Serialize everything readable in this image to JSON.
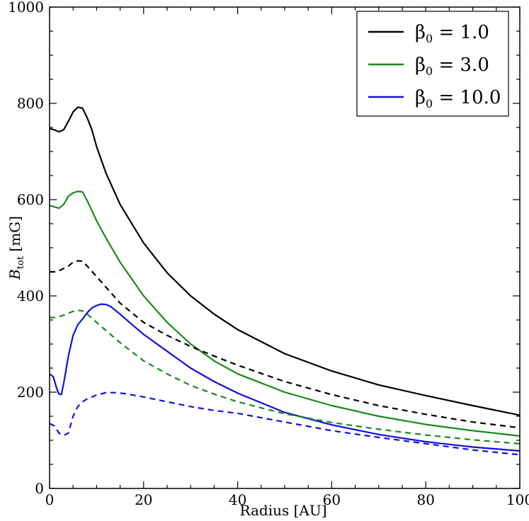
{
  "chart_data": {
    "type": "line",
    "title": "",
    "xlabel": "Radius [AU]",
    "ylabel": {
      "main": "B",
      "sub": "tot",
      "unit": " [mG]"
    },
    "xlim": [
      0,
      100
    ],
    "ylim": [
      0,
      1000
    ],
    "x_ticks": [
      0,
      20,
      40,
      60,
      80,
      100
    ],
    "y_ticks": [
      0,
      200,
      400,
      600,
      800,
      1000
    ],
    "x_tick_labels": [
      "0",
      "20",
      "40",
      "60",
      "80",
      "100"
    ],
    "y_tick_labels": [
      "0",
      "200",
      "400",
      "600",
      "800",
      "1000"
    ],
    "grid": false,
    "legend_position": "top-right",
    "legend": [
      {
        "symbol": "β",
        "sub": "0",
        "text": " = 1.0",
        "color": "#000000"
      },
      {
        "symbol": "β",
        "sub": "0",
        "text": " = 3.0",
        "color": "#1a8a1a"
      },
      {
        "symbol": "β",
        "sub": "0",
        "text": " = 10.0",
        "color": "#1010e0"
      }
    ],
    "series": [
      {
        "name": "β0 = 1.0 (solid)",
        "color": "#000000",
        "style": "solid",
        "points": [
          [
            0,
            748
          ],
          [
            1,
            745
          ],
          [
            2,
            741
          ],
          [
            3,
            745
          ],
          [
            4,
            763
          ],
          [
            5,
            782
          ],
          [
            6,
            792
          ],
          [
            7,
            790
          ],
          [
            8,
            770
          ],
          [
            9,
            745
          ],
          [
            10,
            710
          ],
          [
            12,
            655
          ],
          [
            15,
            590
          ],
          [
            20,
            510
          ],
          [
            25,
            448
          ],
          [
            30,
            400
          ],
          [
            35,
            362
          ],
          [
            40,
            330
          ],
          [
            50,
            280
          ],
          [
            60,
            244
          ],
          [
            70,
            215
          ],
          [
            80,
            193
          ],
          [
            90,
            172
          ],
          [
            100,
            152
          ]
        ]
      },
      {
        "name": "β0 = 3.0 (solid)",
        "color": "#1a8a1a",
        "style": "solid",
        "points": [
          [
            0,
            588
          ],
          [
            1,
            585
          ],
          [
            2,
            582
          ],
          [
            3,
            590
          ],
          [
            4,
            607
          ],
          [
            5,
            614
          ],
          [
            6,
            617
          ],
          [
            7,
            616
          ],
          [
            8,
            598
          ],
          [
            10,
            556
          ],
          [
            12,
            520
          ],
          [
            15,
            470
          ],
          [
            20,
            400
          ],
          [
            25,
            345
          ],
          [
            30,
            300
          ],
          [
            35,
            265
          ],
          [
            40,
            238
          ],
          [
            50,
            200
          ],
          [
            60,
            172
          ],
          [
            70,
            150
          ],
          [
            80,
            133
          ],
          [
            90,
            120
          ],
          [
            100,
            109
          ]
        ]
      },
      {
        "name": "β0 = 10.0 (solid)",
        "color": "#1010e0",
        "style": "solid",
        "points": [
          [
            0,
            238
          ],
          [
            0.8,
            232
          ],
          [
            1.5,
            208
          ],
          [
            2,
            196
          ],
          [
            2.5,
            195
          ],
          [
            3,
            218
          ],
          [
            4,
            275
          ],
          [
            5,
            318
          ],
          [
            6,
            340
          ],
          [
            7,
            352
          ],
          [
            8,
            365
          ],
          [
            9,
            375
          ],
          [
            10,
            380
          ],
          [
            11,
            383
          ],
          [
            12,
            382
          ],
          [
            13,
            378
          ],
          [
            15,
            362
          ],
          [
            17,
            345
          ],
          [
            20,
            320
          ],
          [
            25,
            285
          ],
          [
            30,
            250
          ],
          [
            35,
            222
          ],
          [
            40,
            198
          ],
          [
            50,
            158
          ],
          [
            60,
            132
          ],
          [
            70,
            112
          ],
          [
            80,
            97
          ],
          [
            90,
            86
          ],
          [
            100,
            78
          ]
        ]
      },
      {
        "name": "β0 = 1.0 (dashed)",
        "color": "#000000",
        "style": "dashed",
        "points": [
          [
            0,
            450
          ],
          [
            1,
            450
          ],
          [
            2,
            452
          ],
          [
            3,
            457
          ],
          [
            4,
            462
          ],
          [
            5,
            470
          ],
          [
            6,
            473
          ],
          [
            7,
            472
          ],
          [
            8,
            462
          ],
          [
            10,
            440
          ],
          [
            12,
            418
          ],
          [
            15,
            385
          ],
          [
            20,
            345
          ],
          [
            25,
            318
          ],
          [
            30,
            295
          ],
          [
            35,
            275
          ],
          [
            40,
            256
          ],
          [
            50,
            222
          ],
          [
            60,
            195
          ],
          [
            70,
            172
          ],
          [
            80,
            154
          ],
          [
            90,
            138
          ],
          [
            100,
            126
          ]
        ]
      },
      {
        "name": "β0 = 3.0 (dashed)",
        "color": "#1a8a1a",
        "style": "dashed",
        "points": [
          [
            0,
            355
          ],
          [
            1,
            355
          ],
          [
            2,
            357
          ],
          [
            3,
            360
          ],
          [
            4,
            364
          ],
          [
            5,
            368
          ],
          [
            6,
            370
          ],
          [
            7,
            369
          ],
          [
            8,
            362
          ],
          [
            10,
            345
          ],
          [
            12,
            328
          ],
          [
            15,
            303
          ],
          [
            20,
            265
          ],
          [
            25,
            238
          ],
          [
            30,
            214
          ],
          [
            35,
            196
          ],
          [
            40,
            180
          ],
          [
            50,
            155
          ],
          [
            60,
            137
          ],
          [
            70,
            123
          ],
          [
            80,
            111
          ],
          [
            90,
            101
          ],
          [
            100,
            93
          ]
        ]
      },
      {
        "name": "β0 = 10.0 (dashed)",
        "color": "#1010e0",
        "style": "dashed",
        "points": [
          [
            0,
            135
          ],
          [
            1,
            130
          ],
          [
            2,
            115
          ],
          [
            3,
            110
          ],
          [
            4,
            115
          ],
          [
            5,
            150
          ],
          [
            6,
            170
          ],
          [
            7,
            180
          ],
          [
            8,
            186
          ],
          [
            10,
            194
          ],
          [
            12,
            199
          ],
          [
            14,
            199
          ],
          [
            16,
            197
          ],
          [
            20,
            190
          ],
          [
            25,
            180
          ],
          [
            30,
            170
          ],
          [
            35,
            162
          ],
          [
            40,
            156
          ],
          [
            50,
            138
          ],
          [
            60,
            120
          ],
          [
            70,
            106
          ],
          [
            80,
            93
          ],
          [
            90,
            80
          ],
          [
            100,
            70
          ]
        ]
      }
    ]
  }
}
